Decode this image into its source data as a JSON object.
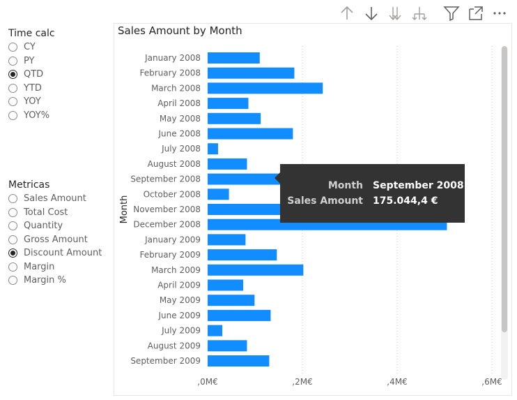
{
  "time_calc": {
    "title": "Time calc",
    "options": [
      {
        "label": "CY",
        "checked": false
      },
      {
        "label": "PY",
        "checked": false
      },
      {
        "label": "QTD",
        "checked": true
      },
      {
        "label": "YTD",
        "checked": false
      },
      {
        "label": "YOY",
        "checked": false
      },
      {
        "label": "YOY%",
        "checked": false
      }
    ]
  },
  "metricas": {
    "title": "Metricas",
    "options": [
      {
        "label": "Sales Amount",
        "checked": false
      },
      {
        "label": "Total Cost",
        "checked": false
      },
      {
        "label": "Quantity",
        "checked": false
      },
      {
        "label": "Gross Amount",
        "checked": false
      },
      {
        "label": "Discount Amount",
        "checked": true
      },
      {
        "label": "Margin",
        "checked": false
      },
      {
        "label": "Margin %",
        "checked": false
      }
    ]
  },
  "toolbar": {
    "icons": [
      "arrow-up-icon",
      "arrow-down-icon",
      "double-arrow-down-icon",
      "expand-hierarchy-icon",
      "filter-icon",
      "focus-mode-icon",
      "more-options-icon"
    ]
  },
  "chart_data": {
    "type": "bar",
    "orientation": "horizontal",
    "title": "Sales Amount by Month",
    "ylabel": "Month",
    "xlabel": "",
    "categories": [
      "January 2008",
      "February 2008",
      "March 2008",
      "April 2008",
      "May 2008",
      "June 2008",
      "July 2008",
      "August 2008",
      "September 2008",
      "October 2008",
      "November 2008",
      "December 2008",
      "January 2009",
      "February 2009",
      "March 2009",
      "April 2009",
      "May 2009",
      "June 2009",
      "July 2009",
      "August 2009",
      "September 2009"
    ],
    "values": [
      110000,
      183000,
      243000,
      86000,
      112000,
      180000,
      22000,
      83000,
      175044.4,
      45000,
      160000,
      505000,
      80000,
      146000,
      202000,
      75000,
      99000,
      133000,
      31000,
      83000,
      130000
    ],
    "xlim": [
      0,
      600000
    ],
    "x_ticks": [
      0,
      200000,
      400000,
      600000
    ],
    "x_tick_labels": [
      ",0M€",
      ",2M€",
      ",4M€",
      ",6M€"
    ],
    "bar_color": "#118DFF",
    "grid": "vertical dotted"
  },
  "tooltip": {
    "month_key": "Month",
    "month_value": "September 2008",
    "amount_key": "Sales Amount",
    "amount_value": "175.044,4 €"
  },
  "colors": {
    "bar": "#118DFF",
    "tooltip_bg": "#333333",
    "text": "#252423",
    "muted_text": "#605e5c"
  }
}
